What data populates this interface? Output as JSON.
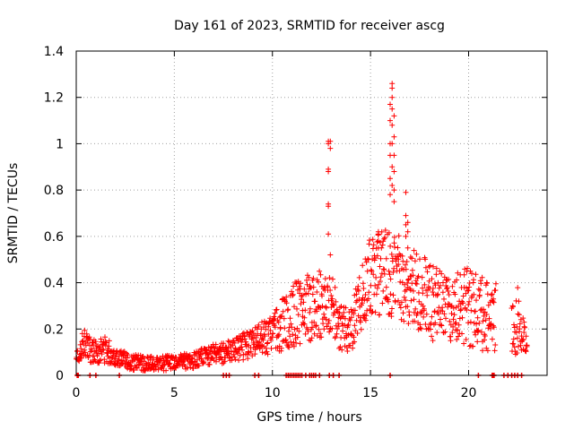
{
  "chart_data": {
    "type": "scatter",
    "title": "Day 161 of 2023, SRMTID for receiver ascg",
    "xlabel": "GPS time / hours",
    "ylabel": "SRMTID / TECUs",
    "xlim": [
      0,
      24
    ],
    "ylim": [
      0,
      1.4
    ],
    "x_ticks": [
      0,
      5,
      10,
      15,
      20
    ],
    "x_tick_labels": [
      "0",
      "5",
      "10",
      "15",
      "20"
    ],
    "y_ticks": [
      0,
      0.2,
      0.4,
      0.6,
      0.8,
      1,
      1.2,
      1.4
    ],
    "y_tick_labels": [
      "0",
      "0.2",
      "0.4",
      "0.6",
      "0.8",
      "1",
      "1.2",
      "1.4"
    ],
    "grid": true,
    "marker": "+",
    "color": "#ff0000",
    "series": [
      {
        "name": "SRMTID",
        "envelope": [
          {
            "x": 0.0,
            "low": 0.05,
            "high": 0.12
          },
          {
            "x": 0.4,
            "low": 0.08,
            "high": 0.21
          },
          {
            "x": 0.8,
            "low": 0.05,
            "high": 0.15
          },
          {
            "x": 1.5,
            "low": 0.05,
            "high": 0.17
          },
          {
            "x": 2.0,
            "low": 0.04,
            "high": 0.12
          },
          {
            "x": 3.0,
            "low": 0.02,
            "high": 0.09
          },
          {
            "x": 4.0,
            "low": 0.02,
            "high": 0.08
          },
          {
            "x": 5.0,
            "low": 0.02,
            "high": 0.09
          },
          {
            "x": 6.0,
            "low": 0.03,
            "high": 0.1
          },
          {
            "x": 7.0,
            "low": 0.05,
            "high": 0.14
          },
          {
            "x": 8.0,
            "low": 0.05,
            "high": 0.16
          },
          {
            "x": 9.0,
            "low": 0.08,
            "high": 0.21
          },
          {
            "x": 10.0,
            "low": 0.09,
            "high": 0.26
          },
          {
            "x": 11.0,
            "low": 0.12,
            "high": 0.4
          },
          {
            "x": 12.0,
            "low": 0.15,
            "high": 0.46
          },
          {
            "x": 13.0,
            "low": 0.17,
            "high": 0.45
          },
          {
            "x": 13.5,
            "low": 0.1,
            "high": 0.3
          },
          {
            "x": 14.0,
            "low": 0.1,
            "high": 0.3
          },
          {
            "x": 15.0,
            "low": 0.25,
            "high": 0.6
          },
          {
            "x": 16.0,
            "low": 0.25,
            "high": 0.65
          },
          {
            "x": 17.0,
            "low": 0.22,
            "high": 0.55
          },
          {
            "x": 18.0,
            "low": 0.15,
            "high": 0.5
          },
          {
            "x": 19.0,
            "low": 0.12,
            "high": 0.42
          },
          {
            "x": 20.0,
            "low": 0.12,
            "high": 0.48
          },
          {
            "x": 21.0,
            "low": 0.1,
            "high": 0.4
          },
          {
            "x": 21.4,
            "low": 0.1,
            "high": 0.4
          },
          {
            "x": 21.8,
            "low": null,
            "high": null
          },
          {
            "x": 22.2,
            "low": 0.08,
            "high": 0.3
          },
          {
            "x": 22.5,
            "low": 0.08,
            "high": 0.43
          },
          {
            "x": 23.0,
            "low": 0.09,
            "high": 0.13
          }
        ],
        "spikes": [
          {
            "x": 12.85,
            "values": [
              0.61,
              0.73,
              0.74,
              0.88,
              0.89,
              1.0,
              1.01
            ]
          },
          {
            "x": 12.95,
            "values": [
              0.52,
              0.98,
              1.01
            ]
          },
          {
            "x": 16.0,
            "values": [
              0.78,
              0.85,
              0.95,
              1.0,
              1.1,
              1.17
            ]
          },
          {
            "x": 16.1,
            "values": [
              0.82,
              0.9,
              1.0,
              1.08,
              1.15,
              1.2,
              1.24,
              1.26
            ]
          },
          {
            "x": 16.2,
            "values": [
              0.75,
              0.8,
              0.88,
              0.95,
              1.03,
              1.12
            ]
          },
          {
            "x": 16.8,
            "values": [
              0.6,
              0.65,
              0.69,
              0.79
            ]
          },
          {
            "x": 16.9,
            "values": [
              0.55,
              0.62,
              0.66
            ]
          },
          {
            "x": 15.4,
            "values": [
              0.55,
              0.58,
              0.61,
              0.62
            ]
          }
        ],
        "zero_values_x": [
          0.05,
          0.1,
          0.7,
          1.0,
          2.2,
          7.5,
          7.65,
          7.8,
          9.1,
          9.3,
          10.7,
          10.8,
          10.9,
          11.0,
          11.1,
          11.2,
          11.3,
          11.4,
          11.5,
          11.7,
          11.9,
          12.0,
          12.1,
          12.2,
          12.4,
          12.9,
          13.1,
          13.4,
          16.0,
          20.5,
          21.2,
          21.25,
          21.3,
          21.8,
          22.0,
          22.2,
          22.35,
          22.5,
          22.7
        ]
      }
    ]
  }
}
